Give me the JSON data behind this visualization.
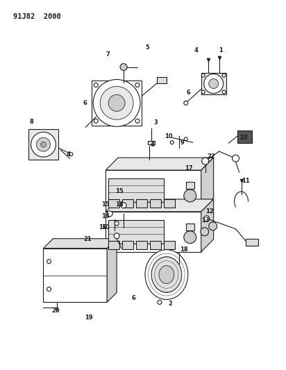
{
  "title": "91J82  2000",
  "bg_color": "#ffffff",
  "line_color": "#1a1a1a",
  "text_color": "#1a1a1a",
  "fig_width": 4.12,
  "fig_height": 5.33,
  "dpi": 100
}
